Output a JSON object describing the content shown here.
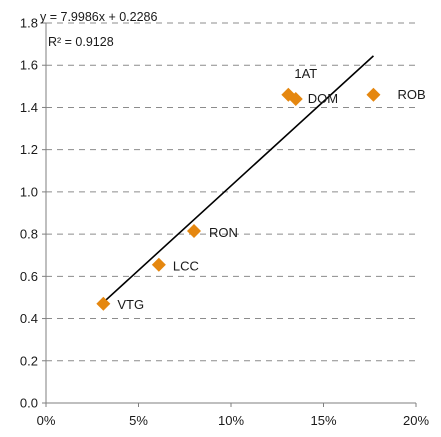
{
  "chart_data": {
    "type": "scatter",
    "title": "",
    "xlabel": "",
    "ylabel": "",
    "xlim": [
      0,
      0.2
    ],
    "ylim": [
      0,
      1.8
    ],
    "grid": true,
    "x_ticks": [
      "0%",
      "5%",
      "10%",
      "15%",
      "20%"
    ],
    "y_ticks": [
      "0.0",
      "0.2",
      "0.4",
      "0.6",
      "0.8",
      "1.0",
      "1.2",
      "1.4",
      "1.6",
      "1.8"
    ],
    "points": [
      {
        "label": "VTG",
        "x": 0.031,
        "y": 0.47
      },
      {
        "label": "LCC",
        "x": 0.061,
        "y": 0.655
      },
      {
        "label": "RON",
        "x": 0.08,
        "y": 0.815
      },
      {
        "label": "1AT",
        "x": 0.131,
        "y": 1.46
      },
      {
        "label": "DOM",
        "x": 0.135,
        "y": 1.44
      },
      {
        "label": "ROB",
        "x": 0.177,
        "y": 1.46
      }
    ],
    "trendline": {
      "slope": 7.9986,
      "intercept": 0.2286,
      "x_range": [
        0.03,
        0.177
      ],
      "equation": "y = 7.9986x + 0.2286",
      "r_squared": "R² = 0.9128"
    },
    "marker_color": "#E5870F"
  }
}
